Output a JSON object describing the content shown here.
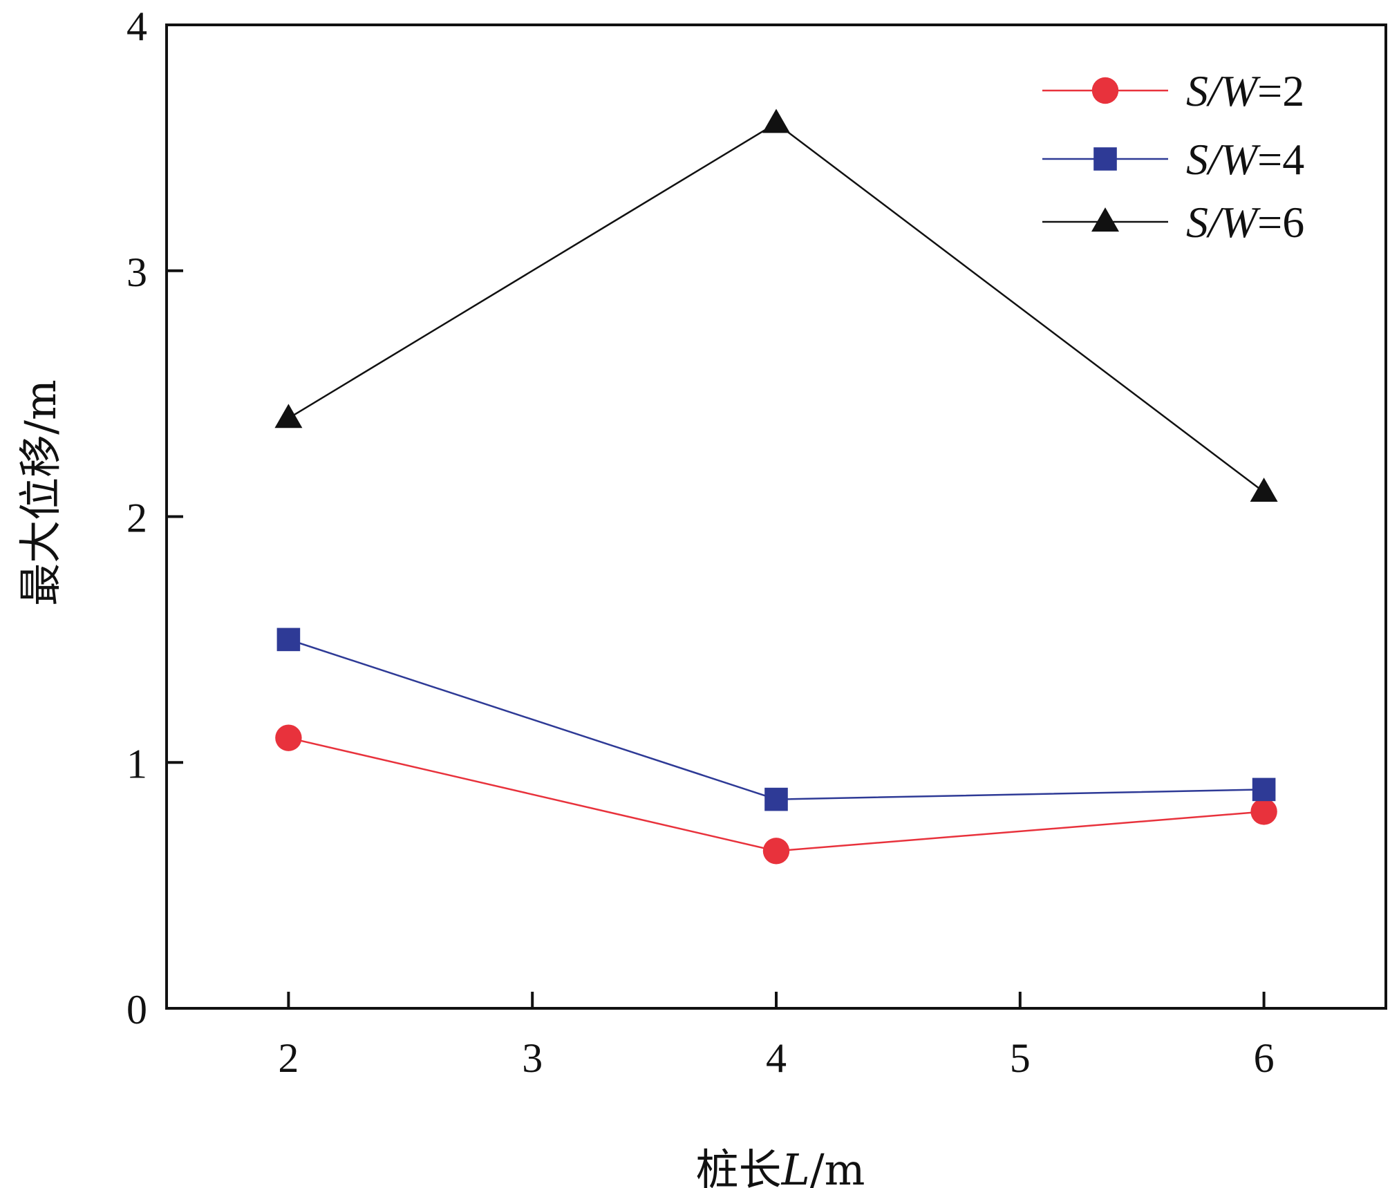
{
  "chart_data": {
    "type": "line",
    "xlabel": "桩长L/m",
    "ylabel": "最大位移/m",
    "xlim": [
      1.5,
      6.5
    ],
    "ylim": [
      0,
      4
    ],
    "x_ticks": [
      2,
      3,
      4,
      5,
      6
    ],
    "y_ticks": [
      0,
      1,
      2,
      3,
      4
    ],
    "grid": false,
    "legend_position": "top-right",
    "x": [
      2,
      4,
      6
    ],
    "series": [
      {
        "name": "S/W=2",
        "name_italic": "S/W",
        "name_suffix": "=2",
        "color": "#e8323c",
        "marker": "circle",
        "values": [
          1.1,
          0.64,
          0.8
        ]
      },
      {
        "name": "S/W=4",
        "name_italic": "S/W",
        "name_suffix": "=4",
        "color": "#2e3a96",
        "marker": "square",
        "values": [
          1.5,
          0.85,
          0.89
        ]
      },
      {
        "name": "S/W=6",
        "name_italic": "S/W",
        "name_suffix": "=6",
        "color": "#111111",
        "marker": "triangle",
        "values": [
          2.4,
          3.6,
          2.1
        ]
      }
    ]
  }
}
